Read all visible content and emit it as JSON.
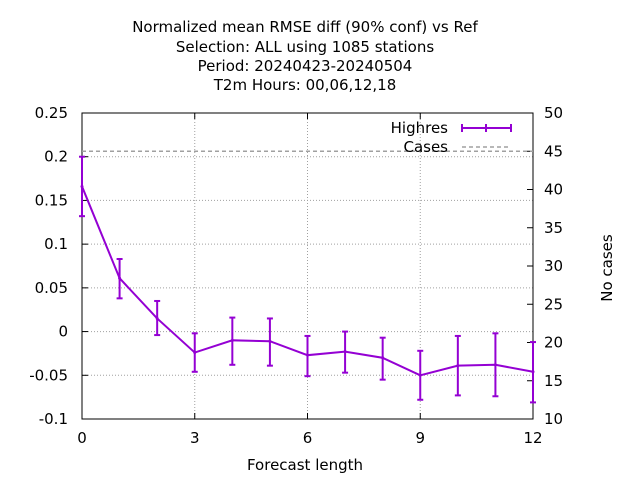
{
  "chart_data": {
    "type": "line",
    "title_lines": [
      "Normalized mean RMSE diff (90% conf) vs Ref",
      "Selection: ALL using  1085 stations",
      "Period: 20240423-20240504",
      "T2m   Hours:  00,06,12,18"
    ],
    "xlabel": "Forecast length",
    "ylabel": "",
    "y2label": "No cases",
    "xlim": [
      0,
      12
    ],
    "ylim": [
      -0.1,
      0.25
    ],
    "y2lim": [
      10,
      50
    ],
    "x_ticks": [
      0,
      3,
      6,
      9,
      12
    ],
    "y_ticks": [
      -0.1,
      -0.05,
      0,
      0.05,
      0.1,
      0.15,
      0.2,
      0.25
    ],
    "y_tick_labels": [
      "-0.1",
      "-0.05",
      "0",
      "0.05",
      "0.1",
      "0.15",
      "0.2",
      "0.25"
    ],
    "y2_ticks": [
      10,
      15,
      20,
      25,
      30,
      35,
      40,
      45,
      50
    ],
    "grid": true,
    "legend_position": "top-right",
    "series": [
      {
        "name": "Highres",
        "color": "#9400d3",
        "axis": "left",
        "x": [
          0,
          1,
          2,
          3,
          4,
          5,
          6,
          7,
          8,
          9,
          10,
          11,
          12
        ],
        "y": [
          0.166,
          0.061,
          0.015,
          -0.024,
          -0.01,
          -0.011,
          -0.027,
          -0.023,
          -0.03,
          -0.05,
          -0.039,
          -0.038,
          -0.046
        ],
        "err_low": [
          0.132,
          0.038,
          -0.004,
          -0.046,
          -0.038,
          -0.039,
          -0.051,
          -0.047,
          -0.055,
          -0.078,
          -0.073,
          -0.074,
          -0.081
        ],
        "err_high": [
          0.2,
          0.083,
          0.035,
          -0.002,
          0.016,
          0.015,
          -0.005,
          0.0,
          -0.007,
          -0.022,
          -0.005,
          -0.002,
          -0.012
        ]
      },
      {
        "name": "Cases",
        "color": "#a0a0a0",
        "axis": "right",
        "style": "dashed",
        "x": [
          0,
          1,
          2,
          3,
          4,
          5,
          6,
          7,
          8,
          9,
          10,
          11,
          12
        ],
        "y": [
          45,
          45,
          45,
          45,
          45,
          45,
          45,
          45,
          45,
          45,
          45,
          45,
          45
        ]
      }
    ]
  }
}
